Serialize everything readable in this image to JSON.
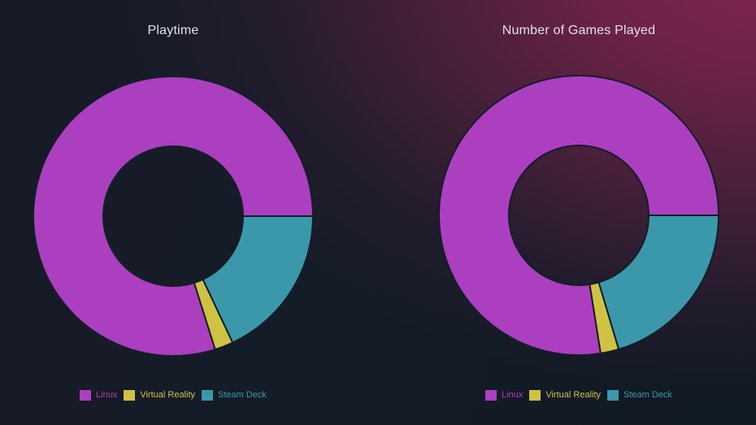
{
  "style": {
    "background_base": "#111a23",
    "background_glow": "#7c2450",
    "slice_outline": "#141d28",
    "title_color": "#e4e2e7"
  },
  "chart_data": [
    {
      "type": "donut",
      "title": "Playtime",
      "hole_ratio": 0.5,
      "legend_position": "bottom",
      "angle_convention": "degrees clockwise from 3 o'clock",
      "series": [
        {
          "label": "Linux",
          "color": "#ab3fc0",
          "share_pct": 79.9,
          "start_deg": 72.5,
          "end_deg": 360
        },
        {
          "label": "Virtual Reality",
          "color": "#cfc243",
          "share_pct": 2.1,
          "start_deg": 64.8,
          "end_deg": 72.5
        },
        {
          "label": "Steam Deck",
          "color": "#3b98ab",
          "share_pct": 18.0,
          "start_deg": 0,
          "end_deg": 64.8
        }
      ]
    },
    {
      "type": "donut",
      "title": "Number of Games Played",
      "hole_ratio": 0.5,
      "legend_position": "bottom",
      "angle_convention": "degrees clockwise from 3 o'clock",
      "series": [
        {
          "label": "Linux",
          "color": "#ab3fc0",
          "share_pct": 77.5,
          "start_deg": 81.0,
          "end_deg": 360
        },
        {
          "label": "Virtual Reality",
          "color": "#cfc243",
          "share_pct": 2.1,
          "start_deg": 73.4,
          "end_deg": 81.0
        },
        {
          "label": "Steam Deck",
          "color": "#3b98ab",
          "share_pct": 20.4,
          "start_deg": 0,
          "end_deg": 73.4
        }
      ]
    }
  ]
}
